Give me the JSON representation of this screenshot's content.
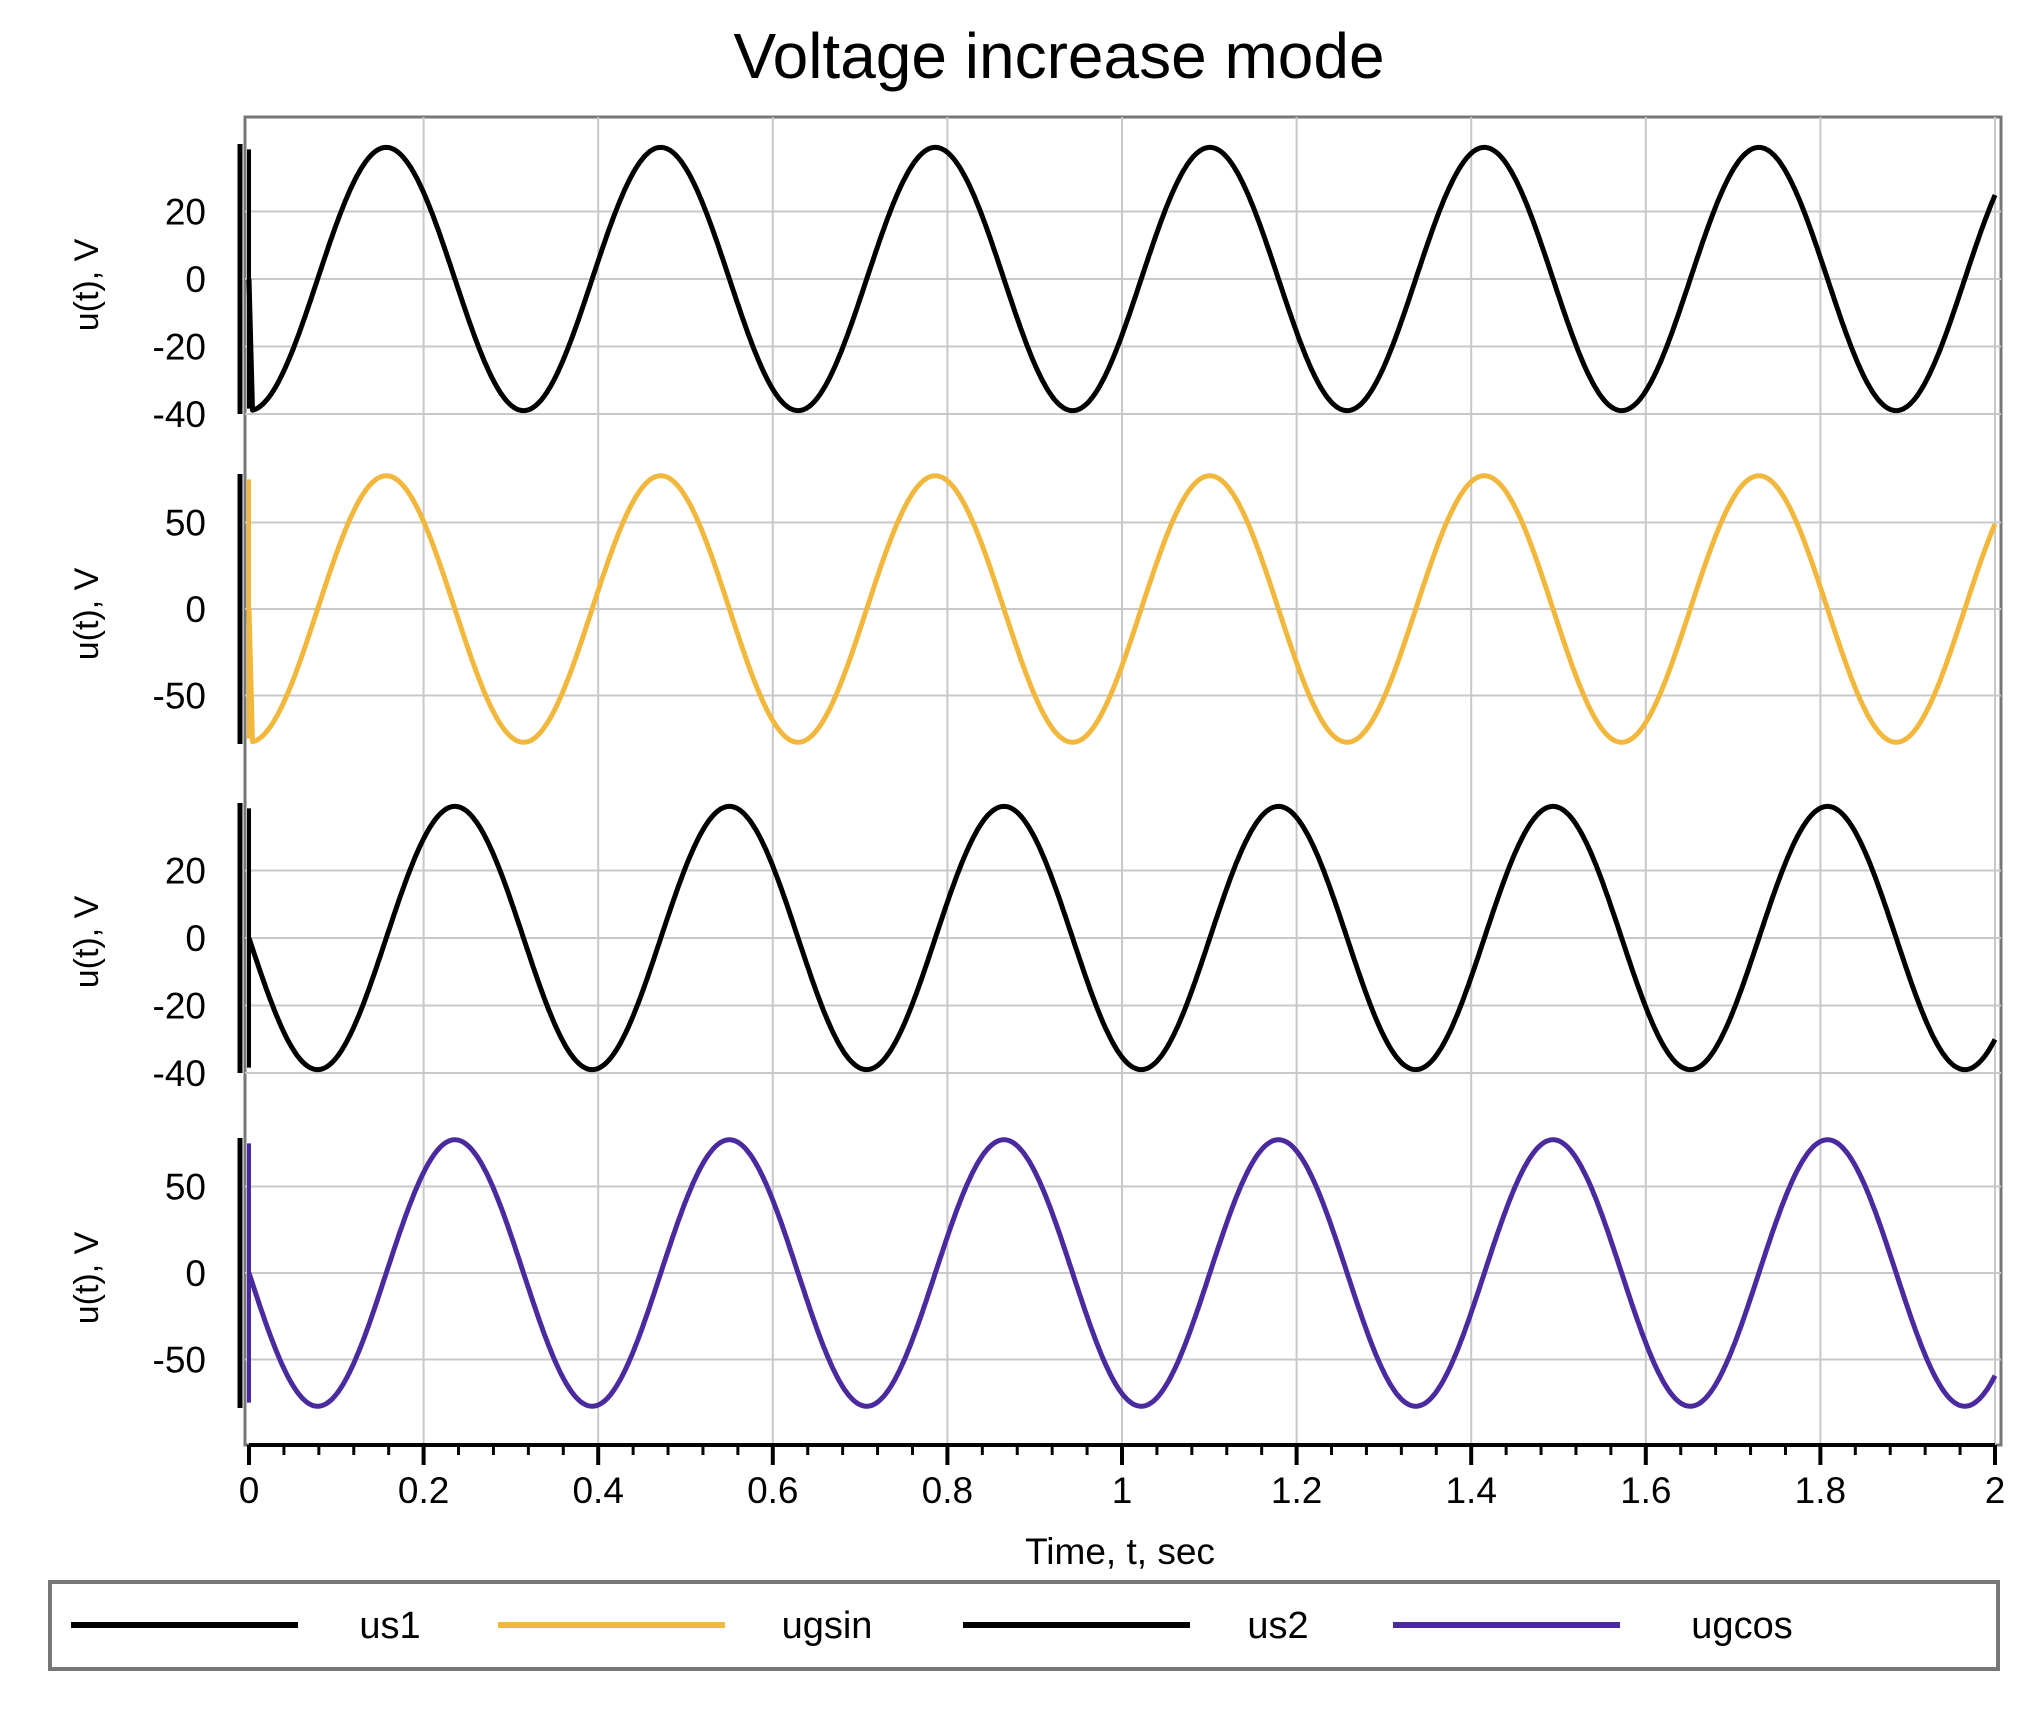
{
  "chart_data": {
    "type": "line",
    "title": "Voltage increase mode",
    "xlabel": "Time, t, sec",
    "xlim": [
      0,
      2
    ],
    "xticks": [
      0,
      0.2,
      0.4,
      0.6,
      0.8,
      1,
      1.2,
      1.4,
      1.6,
      1.8,
      2
    ],
    "xtick_labels": [
      "0",
      "0.2",
      "0.4",
      "0.6",
      "0.8",
      "1",
      "1.2",
      "1.4",
      "1.6",
      "1.8",
      "2"
    ],
    "grid": true,
    "legend_position": "bottom",
    "panels": [
      {
        "series_name": "us1",
        "ylabel": "u(t), V",
        "color": "#000000",
        "ylim": [
          -40,
          40
        ],
        "yticks": [
          20,
          0,
          -20,
          -40
        ],
        "ytick_labels": [
          "20",
          "0",
          "-20",
          "-40"
        ],
        "amplitude": 39,
        "frequency_hz": 3.18,
        "phase": "sine",
        "start_value": 0,
        "points": [
          [
            0,
            0
          ],
          [
            0.159,
            39
          ],
          [
            0.314,
            -39
          ],
          [
            0.471,
            39
          ],
          [
            0.629,
            -39
          ],
          [
            0.786,
            39
          ],
          [
            0.943,
            -39
          ],
          [
            1.1,
            39
          ],
          [
            1.257,
            -39
          ],
          [
            1.414,
            39
          ],
          [
            1.571,
            -39
          ],
          [
            1.729,
            39
          ],
          [
            1.886,
            -39
          ],
          [
            2,
            24
          ]
        ]
      },
      {
        "series_name": "ugsin",
        "ylabel": "u(t), V",
        "color": "#f2b83e",
        "ylim": [
          -78,
          78
        ],
        "yticks": [
          50,
          0,
          -50
        ],
        "ytick_labels": [
          "50",
          "0",
          "-50"
        ],
        "amplitude": 77,
        "frequency_hz": 3.18,
        "phase": "sine",
        "start_value": 0,
        "points": [
          [
            0,
            0
          ],
          [
            0.159,
            77
          ],
          [
            0.314,
            -77
          ],
          [
            0.471,
            77
          ],
          [
            0.629,
            -77
          ],
          [
            0.786,
            77
          ],
          [
            0.943,
            -77
          ],
          [
            1.1,
            77
          ],
          [
            1.257,
            -77
          ],
          [
            1.414,
            77
          ],
          [
            1.571,
            -77
          ],
          [
            1.729,
            77
          ],
          [
            1.886,
            -77
          ],
          [
            2,
            50
          ]
        ]
      },
      {
        "series_name": "us2",
        "ylabel": "u(t), V",
        "color": "#000000",
        "ylim": [
          -40,
          40
        ],
        "yticks": [
          20,
          0,
          -20,
          -40
        ],
        "ytick_labels": [
          "20",
          "0",
          "-20",
          "-40"
        ],
        "amplitude": 39,
        "frequency_hz": 3.18,
        "phase": "negative cosine",
        "start_value": 0,
        "points": [
          [
            0,
            0
          ],
          [
            0.079,
            -39
          ],
          [
            0.236,
            39
          ],
          [
            0.393,
            -39
          ],
          [
            0.55,
            39
          ],
          [
            0.707,
            -39
          ],
          [
            0.864,
            39
          ],
          [
            1.021,
            -39
          ],
          [
            1.179,
            39
          ],
          [
            1.336,
            -39
          ],
          [
            1.493,
            39
          ],
          [
            1.65,
            -39
          ],
          [
            1.807,
            39
          ],
          [
            1.964,
            -39
          ],
          [
            2,
            -30
          ]
        ]
      },
      {
        "series_name": "ugcos",
        "ylabel": "u(t), V",
        "color": "#4a2a9e",
        "ylim": [
          -78,
          78
        ],
        "yticks": [
          50,
          0,
          -50
        ],
        "ytick_labels": [
          "50",
          "0",
          "-50"
        ],
        "amplitude": 77,
        "frequency_hz": 3.18,
        "phase": "negative cosine",
        "start_value": 0,
        "points": [
          [
            0,
            0
          ],
          [
            0.079,
            -77
          ],
          [
            0.236,
            77
          ],
          [
            0.393,
            -77
          ],
          [
            0.55,
            77
          ],
          [
            0.707,
            -77
          ],
          [
            0.864,
            77
          ],
          [
            1.021,
            -77
          ],
          [
            1.179,
            77
          ],
          [
            1.336,
            -77
          ],
          [
            1.493,
            77
          ],
          [
            1.65,
            -77
          ],
          [
            1.807,
            77
          ],
          [
            1.964,
            -77
          ],
          [
            2,
            -58
          ]
        ]
      }
    ],
    "legend": [
      {
        "label": "us1",
        "color": "#000000"
      },
      {
        "label": "ugsin",
        "color": "#f2b83e"
      },
      {
        "label": "us2",
        "color": "#000000"
      },
      {
        "label": "ugcos",
        "color": "#4a2a9e"
      }
    ]
  }
}
